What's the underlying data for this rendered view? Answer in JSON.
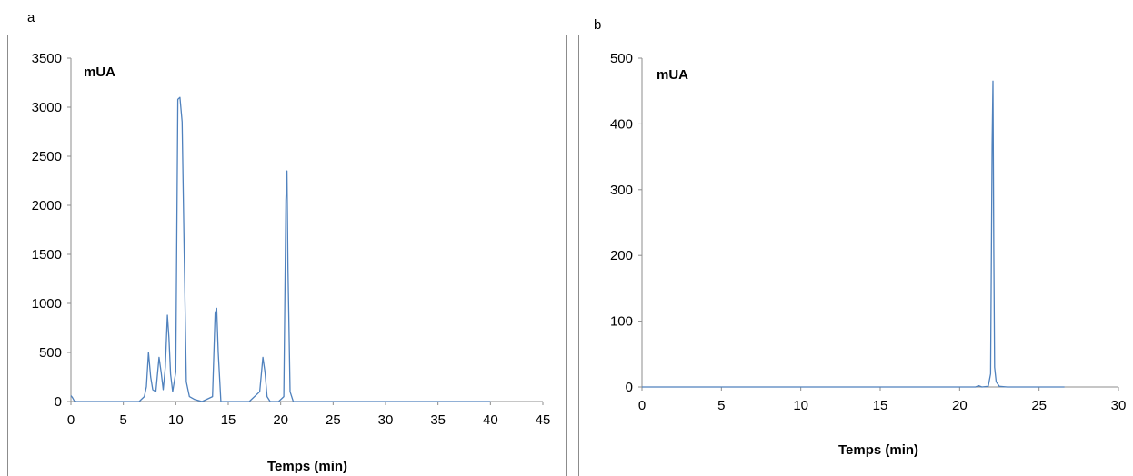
{
  "chart_data": [
    {
      "panel": "a",
      "type": "line",
      "unit_label": "mUA",
      "xlabel": "Temps (min)",
      "ylabel": "",
      "xlim": [
        0,
        45
      ],
      "ylim": [
        0,
        3500
      ],
      "xticks": [
        0,
        5,
        10,
        15,
        20,
        25,
        30,
        35,
        40,
        45
      ],
      "yticks": [
        0,
        500,
        1000,
        1500,
        2000,
        2500,
        3000,
        3500
      ],
      "grid": false,
      "series_color": "#4f81bd",
      "x": [
        0,
        0.15,
        0.3,
        0.5,
        6.5,
        7.0,
        7.2,
        7.4,
        7.6,
        7.8,
        8.1,
        8.4,
        8.6,
        8.8,
        9.0,
        9.2,
        9.35,
        9.5,
        9.7,
        10.0,
        10.2,
        10.4,
        10.6,
        10.8,
        11.0,
        11.3,
        11.8,
        12.5,
        13.5,
        13.75,
        13.9,
        14.05,
        14.3,
        17.0,
        18.0,
        18.3,
        18.5,
        18.7,
        19.0,
        19.8,
        20.3,
        20.5,
        20.6,
        20.7,
        20.9,
        21.2,
        25,
        30,
        35,
        40
      ],
      "y": [
        60,
        40,
        10,
        0,
        0,
        50,
        150,
        500,
        250,
        120,
        100,
        450,
        300,
        120,
        350,
        880,
        650,
        280,
        100,
        300,
        3080,
        3100,
        2850,
        1500,
        200,
        50,
        20,
        0,
        50,
        900,
        950,
        500,
        0,
        0,
        100,
        450,
        300,
        50,
        0,
        0,
        50,
        2050,
        2350,
        1350,
        100,
        0,
        0,
        0,
        0,
        0
      ]
    },
    {
      "panel": "b",
      "type": "line",
      "unit_label": "mUA",
      "xlabel": "Temps (min)",
      "ylabel": "",
      "xlim": [
        0,
        30
      ],
      "ylim": [
        0,
        500
      ],
      "xticks": [
        0,
        5,
        10,
        15,
        20,
        25,
        30
      ],
      "yticks": [
        0,
        100,
        200,
        300,
        400,
        500
      ],
      "grid": false,
      "series_color": "#4f81bd",
      "x": [
        0,
        21.0,
        21.2,
        21.4,
        21.8,
        21.95,
        22.05,
        22.1,
        22.15,
        22.2,
        22.3,
        22.5,
        23.0,
        26.6
      ],
      "y": [
        0,
        0,
        2,
        0,
        1,
        20,
        370,
        465,
        210,
        30,
        8,
        1,
        0,
        0
      ]
    }
  ]
}
